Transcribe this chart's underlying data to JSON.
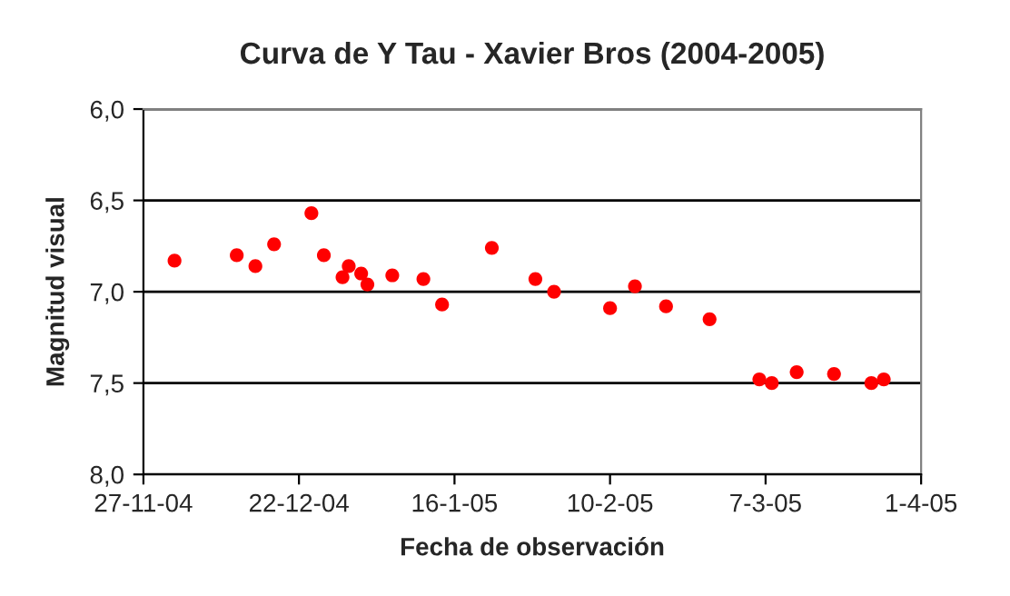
{
  "chart_data": {
    "type": "scatter",
    "title": "Curva de Y Tau - Xavier Bros (2004-2005)",
    "xlabel": "Fecha de observación",
    "ylabel": "Magnitud visual",
    "x": [
      "2004-12-02",
      "2004-12-12",
      "2004-12-15",
      "2004-12-18",
      "2004-12-24",
      "2004-12-26",
      "2004-12-29",
      "2004-12-30",
      "2005-01-01",
      "2005-01-02",
      "2005-01-06",
      "2005-01-11",
      "2005-01-14",
      "2005-01-22",
      "2005-01-29",
      "2005-02-01",
      "2005-02-10",
      "2005-02-14",
      "2005-02-19",
      "2005-02-26",
      "2005-03-06",
      "2005-03-08",
      "2005-03-12",
      "2005-03-18",
      "2005-03-24",
      "2005-03-26"
    ],
    "series": [
      {
        "color": "#ff0000",
        "values": [
          6.83,
          6.8,
          6.86,
          6.74,
          6.57,
          6.8,
          6.92,
          6.86,
          6.9,
          6.96,
          6.91,
          6.93,
          7.07,
          6.76,
          6.93,
          7.0,
          7.09,
          6.97,
          7.08,
          7.15,
          7.48,
          7.5,
          7.44,
          7.45,
          7.5,
          7.48
        ]
      }
    ],
    "xlim": [
      "2004-11-27",
      "2005-04-01"
    ],
    "xticks": [
      {
        "value": "2004-11-27",
        "label": "27-11-04"
      },
      {
        "value": "2004-12-22",
        "label": "22-12-04"
      },
      {
        "value": "2005-01-16",
        "label": "16-1-05"
      },
      {
        "value": "2005-02-10",
        "label": "10-2-05"
      },
      {
        "value": "2005-03-07",
        "label": "7-3-05"
      },
      {
        "value": "2005-04-01",
        "label": "1-4-05"
      }
    ],
    "ylim": [
      8.0,
      6.0
    ],
    "yticks": [
      {
        "value": 6.0,
        "label": "6,0"
      },
      {
        "value": 6.5,
        "label": "6,5"
      },
      {
        "value": 7.0,
        "label": "7,0"
      },
      {
        "value": 7.5,
        "label": "7,5"
      },
      {
        "value": 8.0,
        "label": "8,0"
      }
    ],
    "grid": "y",
    "marker": "circle",
    "legend": false
  }
}
